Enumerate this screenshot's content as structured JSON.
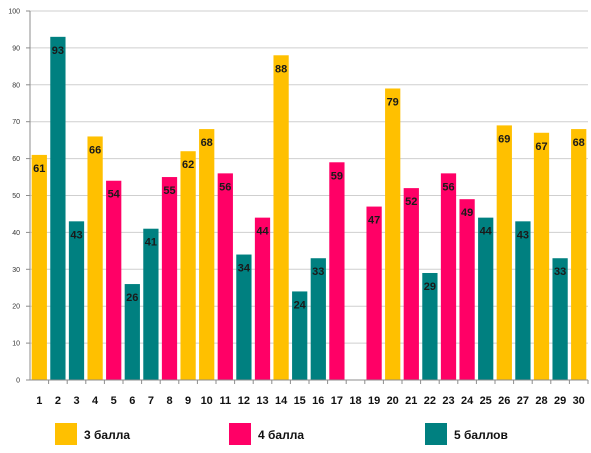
{
  "chart_data": {
    "type": "bar",
    "categories": [
      "1",
      "2",
      "3",
      "4",
      "5",
      "6",
      "7",
      "8",
      "9",
      "10",
      "11",
      "12",
      "13",
      "14",
      "15",
      "16",
      "17",
      "18",
      "19",
      "20",
      "21",
      "22",
      "23",
      "24",
      "25",
      "26",
      "27",
      "28",
      "29",
      "30"
    ],
    "values": [
      61,
      93,
      43,
      66,
      54,
      26,
      41,
      55,
      62,
      68,
      56,
      34,
      44,
      88,
      24,
      33,
      59,
      null,
      47,
      79,
      52,
      29,
      56,
      49,
      44,
      69,
      43,
      67,
      33,
      68
    ],
    "groups": [
      "3",
      "5",
      "5",
      "3",
      "4",
      "5",
      "5",
      "4",
      "3",
      "3",
      "4",
      "5",
      "4",
      "3",
      "5",
      "5",
      "4",
      "",
      "4",
      "3",
      "4",
      "5",
      "4",
      "4",
      "5",
      "3",
      "5",
      "3",
      "5",
      "3"
    ],
    "ylim": [
      0,
      100
    ],
    "yticks": [
      0,
      10,
      20,
      30,
      40,
      50,
      60,
      70,
      80,
      90,
      100
    ],
    "grid": true,
    "legend_position": "bottom",
    "legend": [
      {
        "key": "3",
        "label": "3 балла",
        "color": "#FFC000"
      },
      {
        "key": "4",
        "label": "4 балла",
        "color": "#FF0066"
      },
      {
        "key": "5",
        "label": "5 баллов",
        "color": "#008080"
      }
    ]
  }
}
